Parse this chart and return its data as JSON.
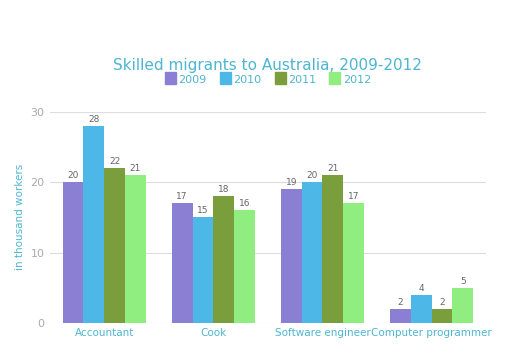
{
  "title": "Skilled migrants to Australia, 2009-2012",
  "ylabel": "in thousand workers",
  "categories": [
    "Accountant",
    "Cook",
    "Software engineer",
    "Computer programmer"
  ],
  "years": [
    "2009",
    "2010",
    "2011",
    "2012"
  ],
  "values": {
    "2009": [
      20,
      17,
      19,
      2
    ],
    "2010": [
      28,
      15,
      20,
      4
    ],
    "2011": [
      22,
      18,
      21,
      2
    ],
    "2012": [
      21,
      16,
      17,
      5
    ]
  },
  "colors": {
    "2009": "#8B7FD4",
    "2010": "#4DB8E8",
    "2011": "#7B9E3C",
    "2012": "#90EE80"
  },
  "ylim": [
    0,
    30
  ],
  "yticks": [
    0,
    10,
    20,
    30
  ],
  "background_color": "#ffffff",
  "title_color": "#4db6d0",
  "label_color": "#4db6d0",
  "tick_color": "#aaaaaa",
  "bar_label_color": "#666666",
  "grid_color": "#dddddd",
  "bar_width": 0.19,
  "figsize": [
    5.12,
    3.53
  ],
  "dpi": 100
}
